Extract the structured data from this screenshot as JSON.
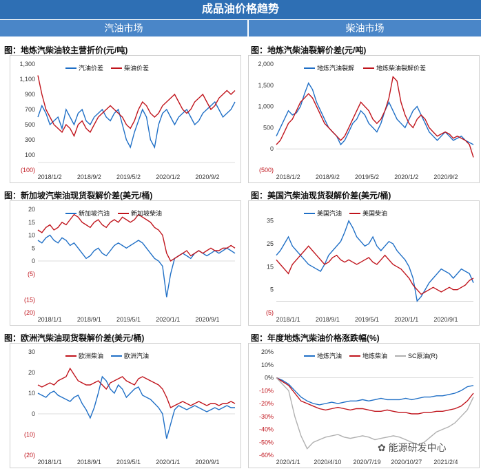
{
  "page": {
    "banner": "成品油价格趋势",
    "left_header": "汽油市场",
    "right_header": "柴油市场",
    "watermark": "能源研发中心"
  },
  "colors": {
    "blue": "#1f6fc6",
    "red": "#c0141c",
    "gray": "#b0b0b0",
    "neg": "#c0141c",
    "axis": "#333333"
  },
  "chart_data": [
    {
      "id": "p1",
      "type": "line",
      "title": "图：地炼汽柴油较主营折价(元/吨)",
      "x_ticks": [
        "2018/1/2",
        "2018/9/2",
        "2019/5/2",
        "2020/1/2",
        "2020/9/2"
      ],
      "y_ticks": [
        1300,
        1100,
        900,
        700,
        500,
        300,
        100,
        -100
      ],
      "y_tick_labels": [
        "1,300",
        "1,100",
        "900",
        "700",
        "500",
        "300",
        "100",
        "(100)"
      ],
      "ylim": [
        -100,
        1300
      ],
      "legend": "top-center",
      "series": [
        {
          "name": "汽油价差",
          "color": "blue",
          "values": [
            600,
            750,
            650,
            500,
            550,
            600,
            450,
            700,
            600,
            500,
            650,
            700,
            550,
            500,
            600,
            650,
            700,
            600,
            550,
            650,
            700,
            500,
            300,
            200,
            400,
            550,
            700,
            600,
            300,
            200,
            500,
            650,
            700,
            600,
            500,
            600,
            650,
            700,
            600,
            500,
            550,
            650,
            700,
            750,
            800,
            700,
            600,
            650,
            700,
            800
          ]
        },
        {
          "name": "柴油价差",
          "color": "red",
          "values": [
            1150,
            900,
            700,
            600,
            500,
            450,
            400,
            500,
            450,
            350,
            500,
            550,
            450,
            400,
            500,
            600,
            650,
            700,
            750,
            700,
            650,
            600,
            500,
            450,
            550,
            700,
            800,
            750,
            650,
            600,
            650,
            750,
            800,
            850,
            900,
            800,
            700,
            650,
            700,
            800,
            850,
            900,
            800,
            700,
            750,
            850,
            900,
            950,
            900,
            950
          ]
        }
      ]
    },
    {
      "id": "p2",
      "type": "line",
      "title": "图：地炼汽柴油裂解价差(元/吨)",
      "x_ticks": [
        "2018/1/2",
        "2018/9/2",
        "2019/5/2",
        "2020/1/2",
        "2020/9/2"
      ],
      "y_ticks": [
        2000,
        1500,
        1000,
        500,
        0,
        -500
      ],
      "y_tick_labels": [
        "2,000",
        "1,500",
        "1,000",
        "500",
        "0",
        "(500)"
      ],
      "ylim": [
        -500,
        2000
      ],
      "legend": "top-center",
      "series": [
        {
          "name": "地炼汽油裂解",
          "color": "blue",
          "values": [
            300,
            500,
            700,
            900,
            800,
            850,
            1000,
            1300,
            1550,
            1400,
            1100,
            900,
            700,
            500,
            400,
            300,
            100,
            200,
            400,
            600,
            700,
            900,
            800,
            600,
            500,
            400,
            600,
            900,
            1100,
            900,
            700,
            600,
            500,
            700,
            900,
            1000,
            800,
            600,
            400,
            300,
            200,
            300,
            400,
            300,
            200,
            250,
            300,
            200,
            150,
            100
          ]
        },
        {
          "name": "地炼柴油裂解价差",
          "color": "red",
          "values": [
            100,
            200,
            400,
            600,
            700,
            900,
            1100,
            1200,
            1300,
            1200,
            1000,
            800,
            600,
            500,
            400,
            300,
            200,
            300,
            500,
            700,
            900,
            1100,
            1000,
            900,
            700,
            600,
            700,
            900,
            1200,
            1700,
            1600,
            1100,
            800,
            600,
            500,
            700,
            800,
            700,
            500,
            400,
            300,
            350,
            400,
            350,
            250,
            300,
            250,
            200,
            100,
            -200
          ]
        }
      ]
    },
    {
      "id": "p3",
      "type": "line",
      "title": "图：新加坡汽柴油现货裂解价差(美元/桶)",
      "x_ticks": [
        "2018/1/1",
        "2018/9/1",
        "2019/5/1",
        "2020/1/1",
        "2020/9/1"
      ],
      "y_ticks": [
        20,
        15,
        10,
        5,
        0,
        -5,
        -15,
        -20
      ],
      "y_tick_labels": [
        "20",
        "15",
        "10",
        "5",
        "0",
        "(5)",
        "(15)",
        "(20)"
      ],
      "ylim": [
        -20,
        20
      ],
      "legend": "top-center",
      "series": [
        {
          "name": "新加坡汽油",
          "color": "blue",
          "values": [
            8,
            7,
            9,
            10,
            8,
            7,
            9,
            8,
            6,
            7,
            5,
            3,
            1,
            2,
            4,
            5,
            3,
            2,
            4,
            6,
            7,
            6,
            5,
            6,
            7,
            8,
            7,
            5,
            3,
            1,
            0,
            -2,
            -14,
            -5,
            1,
            2,
            3,
            2,
            1,
            3,
            4,
            3,
            2,
            3,
            4,
            3,
            4,
            5,
            4,
            3
          ]
        },
        {
          "name": "新加坡柴油",
          "color": "red",
          "values": [
            12,
            11,
            13,
            14,
            12,
            13,
            15,
            14,
            16,
            18,
            17,
            15,
            14,
            13,
            15,
            16,
            14,
            13,
            15,
            16,
            15,
            17,
            16,
            15,
            16,
            18,
            17,
            16,
            15,
            13,
            12,
            10,
            3,
            0,
            1,
            2,
            3,
            4,
            2,
            3,
            4,
            3,
            4,
            5,
            4,
            4,
            5,
            5,
            6,
            5
          ]
        }
      ]
    },
    {
      "id": "p4",
      "type": "line",
      "title": "图：美国汽柴油现货裂解价差(美元/桶)",
      "x_ticks": [
        "2018/1/1",
        "2018/9/1",
        "2019/5/1",
        "2020/1/1",
        "2020/9/1"
      ],
      "y_ticks": [
        35,
        25,
        15,
        5,
        -5
      ],
      "y_tick_labels": [
        "35",
        "25",
        "15",
        "5",
        "(5)"
      ],
      "ylim": [
        -5,
        40
      ],
      "legend": "top-center",
      "series": [
        {
          "name": "美国汽油",
          "color": "blue",
          "values": [
            20,
            22,
            25,
            28,
            24,
            22,
            20,
            18,
            16,
            15,
            14,
            13,
            16,
            20,
            22,
            24,
            26,
            30,
            35,
            32,
            28,
            26,
            24,
            25,
            28,
            24,
            22,
            24,
            26,
            25,
            22,
            20,
            18,
            15,
            10,
            0,
            2,
            5,
            8,
            10,
            12,
            14,
            13,
            12,
            10,
            12,
            14,
            13,
            12,
            8
          ]
        },
        {
          "name": "美国柴油",
          "color": "red",
          "values": [
            18,
            16,
            14,
            12,
            16,
            18,
            20,
            22,
            24,
            22,
            20,
            18,
            16,
            17,
            19,
            20,
            18,
            17,
            18,
            17,
            16,
            17,
            18,
            19,
            17,
            16,
            18,
            20,
            18,
            16,
            15,
            14,
            12,
            10,
            7,
            5,
            3,
            4,
            5,
            6,
            5,
            4,
            5,
            6,
            5,
            5,
            6,
            7,
            9,
            10
          ]
        }
      ]
    },
    {
      "id": "p5",
      "type": "line",
      "title": "图：欧洲汽柴油现货裂解价差(美元/桶)",
      "x_ticks": [
        "2018/1/1",
        "2018/9/1",
        "2019/5/1",
        "2020/1/1",
        "2020/9/1"
      ],
      "y_ticks": [
        30,
        20,
        10,
        0,
        -10,
        -20
      ],
      "y_tick_labels": [
        "30",
        "20",
        "10",
        "0",
        "(10)",
        "(20)"
      ],
      "ylim": [
        -20,
        30
      ],
      "legend": "top-center",
      "series": [
        {
          "name": "欧洲柴油",
          "color": "red",
          "values": [
            14,
            13,
            14,
            15,
            14,
            16,
            17,
            18,
            22,
            19,
            16,
            15,
            14,
            14,
            15,
            16,
            14,
            12,
            15,
            16,
            17,
            18,
            16,
            15,
            14,
            17,
            18,
            17,
            16,
            15,
            14,
            12,
            8,
            3,
            4,
            5,
            6,
            5,
            4,
            5,
            6,
            5,
            4,
            5,
            5,
            4,
            5,
            5,
            6,
            5
          ]
        },
        {
          "name": "欧洲汽油",
          "color": "blue",
          "values": [
            10,
            9,
            8,
            10,
            11,
            9,
            8,
            7,
            6,
            8,
            9,
            5,
            2,
            -2,
            3,
            10,
            18,
            16,
            12,
            10,
            14,
            12,
            8,
            10,
            12,
            13,
            9,
            8,
            7,
            5,
            3,
            0,
            -12,
            -5,
            2,
            4,
            3,
            2,
            3,
            4,
            3,
            2,
            1,
            2,
            3,
            2,
            3,
            4,
            3,
            3
          ]
        }
      ]
    },
    {
      "id": "p6",
      "type": "line",
      "title": "图：年度地炼汽柴油价格涨跌幅(%)",
      "x_ticks": [
        "2020/1/1",
        "2020/4/10",
        "2020/7/19",
        "2020/10/27",
        "2021/2/4"
      ],
      "y_ticks": [
        20,
        10,
        0,
        -10,
        -20,
        -30,
        -40,
        -50,
        -60
      ],
      "y_tick_labels": [
        "20%",
        "10%",
        "0%",
        "-10%",
        "-20%",
        "-30%",
        "-40%",
        "-50%",
        "-60%"
      ],
      "ylim": [
        -60,
        20
      ],
      "legend": "top-center",
      "series": [
        {
          "name": "地炼汽油",
          "color": "blue",
          "values": [
            0,
            -2,
            -5,
            -10,
            -15,
            -18,
            -20,
            -21,
            -20,
            -19,
            -20,
            -19,
            -18,
            -18,
            -17,
            -18,
            -17,
            -16,
            -17,
            -17,
            -17,
            -16,
            -17,
            -16,
            -15,
            -15,
            -14,
            -14,
            -13,
            -12,
            -10,
            -7,
            -6
          ]
        },
        {
          "name": "地炼柴油",
          "color": "red",
          "values": [
            0,
            -3,
            -6,
            -12,
            -18,
            -20,
            -22,
            -24,
            -25,
            -24,
            -23,
            -24,
            -25,
            -24,
            -24,
            -25,
            -26,
            -26,
            -25,
            -26,
            -27,
            -27,
            -28,
            -28,
            -27,
            -27,
            -26,
            -26,
            -25,
            -24,
            -22,
            -18,
            -12
          ]
        },
        {
          "name": "SC原油(R)",
          "color": "gray",
          "values": [
            0,
            -5,
            -10,
            -30,
            -45,
            -55,
            -50,
            -48,
            -46,
            -45,
            -44,
            -46,
            -47,
            -46,
            -45,
            -46,
            -48,
            -47,
            -46,
            -45,
            -46,
            -48,
            -50,
            -52,
            -50,
            -46,
            -42,
            -40,
            -38,
            -35,
            -30,
            -25,
            -15
          ]
        }
      ]
    }
  ]
}
